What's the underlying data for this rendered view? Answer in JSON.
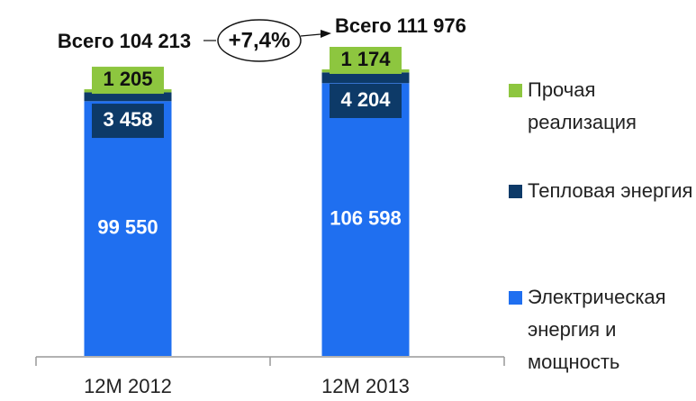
{
  "chart_data": {
    "type": "stacked_bar",
    "categories": [
      "12M 2012",
      "12M 2013"
    ],
    "series": [
      {
        "name": "Электрическая энергия и мощность",
        "color": "#1f6ff0",
        "values": [
          99550,
          106598
        ],
        "value_labels": [
          "99 550",
          "106 598"
        ]
      },
      {
        "name": "Тепловая энергия",
        "color": "#0d3a68",
        "values": [
          3458,
          4204
        ],
        "value_labels": [
          "3 458",
          "4 204"
        ]
      },
      {
        "name": "Прочая реализация",
        "color": "#8dc63f",
        "values": [
          1205,
          1174
        ],
        "value_labels": [
          "1 205",
          "1 174"
        ]
      }
    ],
    "totals_labels": [
      "Всего 104 213",
      "Всего 111 976"
    ],
    "change_label": "+7,4%",
    "legend": "right"
  }
}
